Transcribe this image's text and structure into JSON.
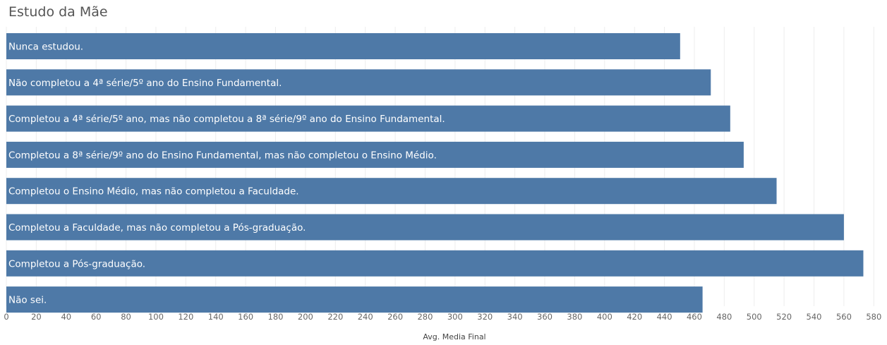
{
  "chart_data": {
    "type": "bar",
    "orientation": "horizontal",
    "title": "Estudo da Mãe",
    "xlabel": "Avg. Media Final",
    "ylabel": "",
    "xlim": [
      0,
      580
    ],
    "x_ticks": [
      0,
      20,
      40,
      60,
      80,
      100,
      120,
      140,
      160,
      180,
      200,
      220,
      240,
      260,
      280,
      300,
      320,
      340,
      360,
      380,
      400,
      420,
      440,
      460,
      480,
      500,
      520,
      540,
      560,
      580
    ],
    "grid": true,
    "categories": [
      "Nunca estudou.",
      "Não completou a 4ª série/5º ano do Ensino Fundamental.",
      "Completou a 4ª série/5º ano, mas não completou a 8ª série/9º ano do Ensino Fundamental.",
      "Completou a 8ª série/9º ano do Ensino Fundamental, mas não completou o Ensino Médio.",
      "Completou o Ensino Médio, mas não completou a Faculdade.",
      "Completou a Faculdade, mas não completou a Pós-graduação.",
      "Completou a Pós-graduação.",
      "Não sei."
    ],
    "values": [
      450.5,
      471,
      484,
      493,
      515,
      560,
      573,
      465.5
    ],
    "bar_color": "#4e79a7",
    "label_color": "#ffffff",
    "grid_color": "#ededed"
  }
}
